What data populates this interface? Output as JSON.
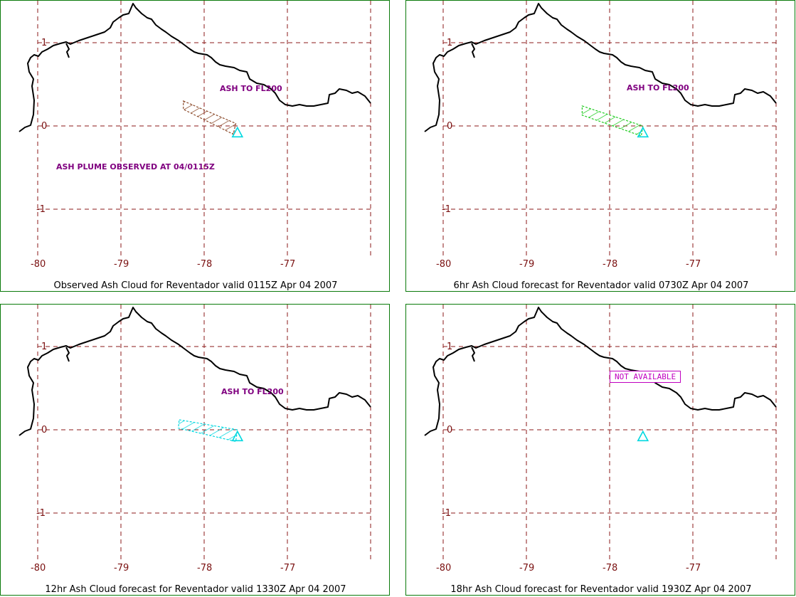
{
  "colors": {
    "border": "#0a7a0a",
    "grid": "#8b1a1a",
    "coast": "#000000",
    "annotation": "#800080",
    "volcano": "#00d8e0",
    "not_available": "#c000c0"
  },
  "axes": {
    "x_ticks": [
      "-80",
      "-79",
      "-78",
      "-77"
    ],
    "y_ticks": [
      "1",
      "0",
      "-1"
    ],
    "lon_range": [
      -80,
      -76
    ],
    "lat_range": [
      -1.5,
      1.5
    ]
  },
  "volcano": {
    "name": "Reventador",
    "lon": -77.6,
    "lat": -0.08,
    "icon": "triangle-icon"
  },
  "panels": [
    {
      "id": "observed",
      "caption": "Observed Ash Cloud for Reventador valid 0115Z Apr 04 2007",
      "cloud_color": "#8b4a2a",
      "annotations": [
        "ASH TO FL200",
        "ASH PLUME OBSERVED AT 04/0115Z"
      ],
      "not_available": ""
    },
    {
      "id": "forecast-6hr",
      "caption": "6hr Ash Cloud forecast for Reventador valid 0730Z Apr 04 2007",
      "cloud_color": "#22cc22",
      "annotations": [
        "ASH TO FL200"
      ],
      "not_available": ""
    },
    {
      "id": "forecast-12hr",
      "caption": "12hr Ash Cloud forecast for Reventador valid 1330Z Apr 04 2007",
      "cloud_color": "#00d8e0",
      "annotations": [
        "ASH TO FL200"
      ],
      "not_available": ""
    },
    {
      "id": "forecast-18hr",
      "caption": "18hr Ash Cloud forecast for Reventador valid 1930Z Apr 04 2007",
      "cloud_color": "",
      "annotations": [],
      "not_available": "NOT AVAILABLE"
    }
  ]
}
